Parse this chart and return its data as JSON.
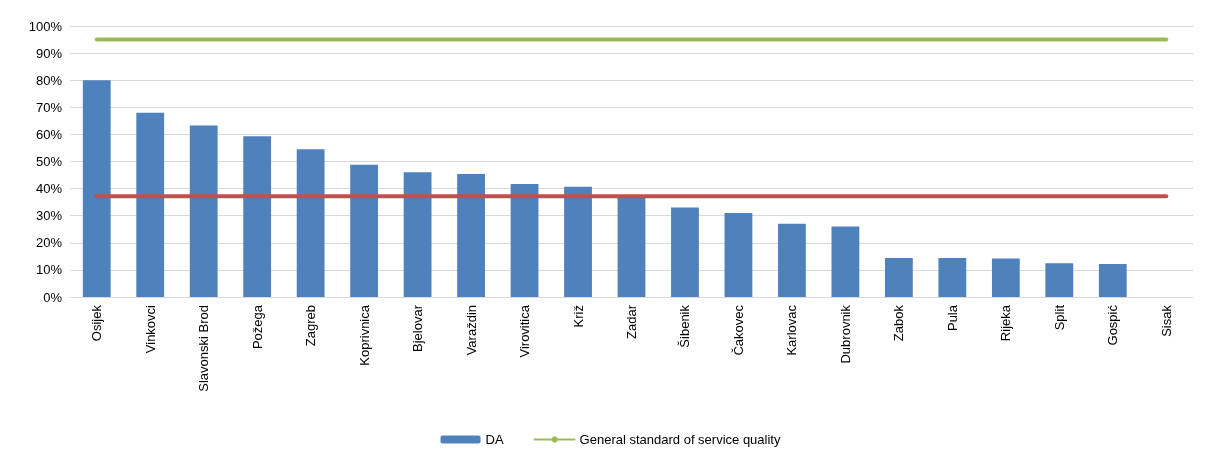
{
  "chart_data": {
    "type": "bar",
    "categories": [
      "Osijek",
      "Vinkovci",
      "Slavonski Brod",
      "Požega",
      "Zagreb",
      "Koprivnica",
      "Bjelovar",
      "Varaždin",
      "Virovitica",
      "Križ",
      "Zadar",
      "Šibenik",
      "Čakovec",
      "Karlovac",
      "Dubrovnik",
      "Zabok",
      "Pula",
      "Rijeka",
      "Split",
      "Gospić",
      "Sisak"
    ],
    "series": [
      {
        "name": "DA",
        "color": "#4f81bd",
        "values": [
          80,
          68,
          63.3,
          59.3,
          54.5,
          48.8,
          46,
          45.4,
          41.7,
          40.7,
          37,
          33,
          31,
          27,
          26,
          14.4,
          14.4,
          14.2,
          12.5,
          12.2,
          0
        ]
      },
      {
        "type": "line",
        "color": "#c0504d",
        "values": [
          37.2,
          37.2,
          37.2,
          37.2,
          37.2,
          37.2,
          37.2,
          37.2,
          37.2,
          37.2,
          37.2,
          37.2,
          37.2,
          37.2,
          37.2,
          37.2,
          37.2,
          37.2,
          37.2,
          37.2,
          37.2
        ]
      },
      {
        "type": "line",
        "name": "General standard of service quality",
        "color": "#9bbb59",
        "values": [
          95,
          95,
          95,
          95,
          95,
          95,
          95,
          95,
          95,
          95,
          95,
          95,
          95,
          95,
          95,
          95,
          95,
          95,
          95,
          95,
          95
        ]
      }
    ],
    "ylim": [
      0,
      100
    ],
    "yticks": [
      {
        "value": 0,
        "label": "0%"
      },
      {
        "value": 10,
        "label": "10%"
      },
      {
        "value": 20,
        "label": "20%"
      },
      {
        "value": 30,
        "label": "30%"
      },
      {
        "value": 40,
        "label": "40%"
      },
      {
        "value": 50,
        "label": "50%"
      },
      {
        "value": 60,
        "label": "60%"
      },
      {
        "value": 70,
        "label": "70%"
      },
      {
        "value": 80,
        "label": "80%"
      },
      {
        "value": 90,
        "label": "90%"
      },
      {
        "value": 100,
        "label": "100%"
      }
    ],
    "grid": "y",
    "legend": "bottom",
    "marker": "none"
  }
}
